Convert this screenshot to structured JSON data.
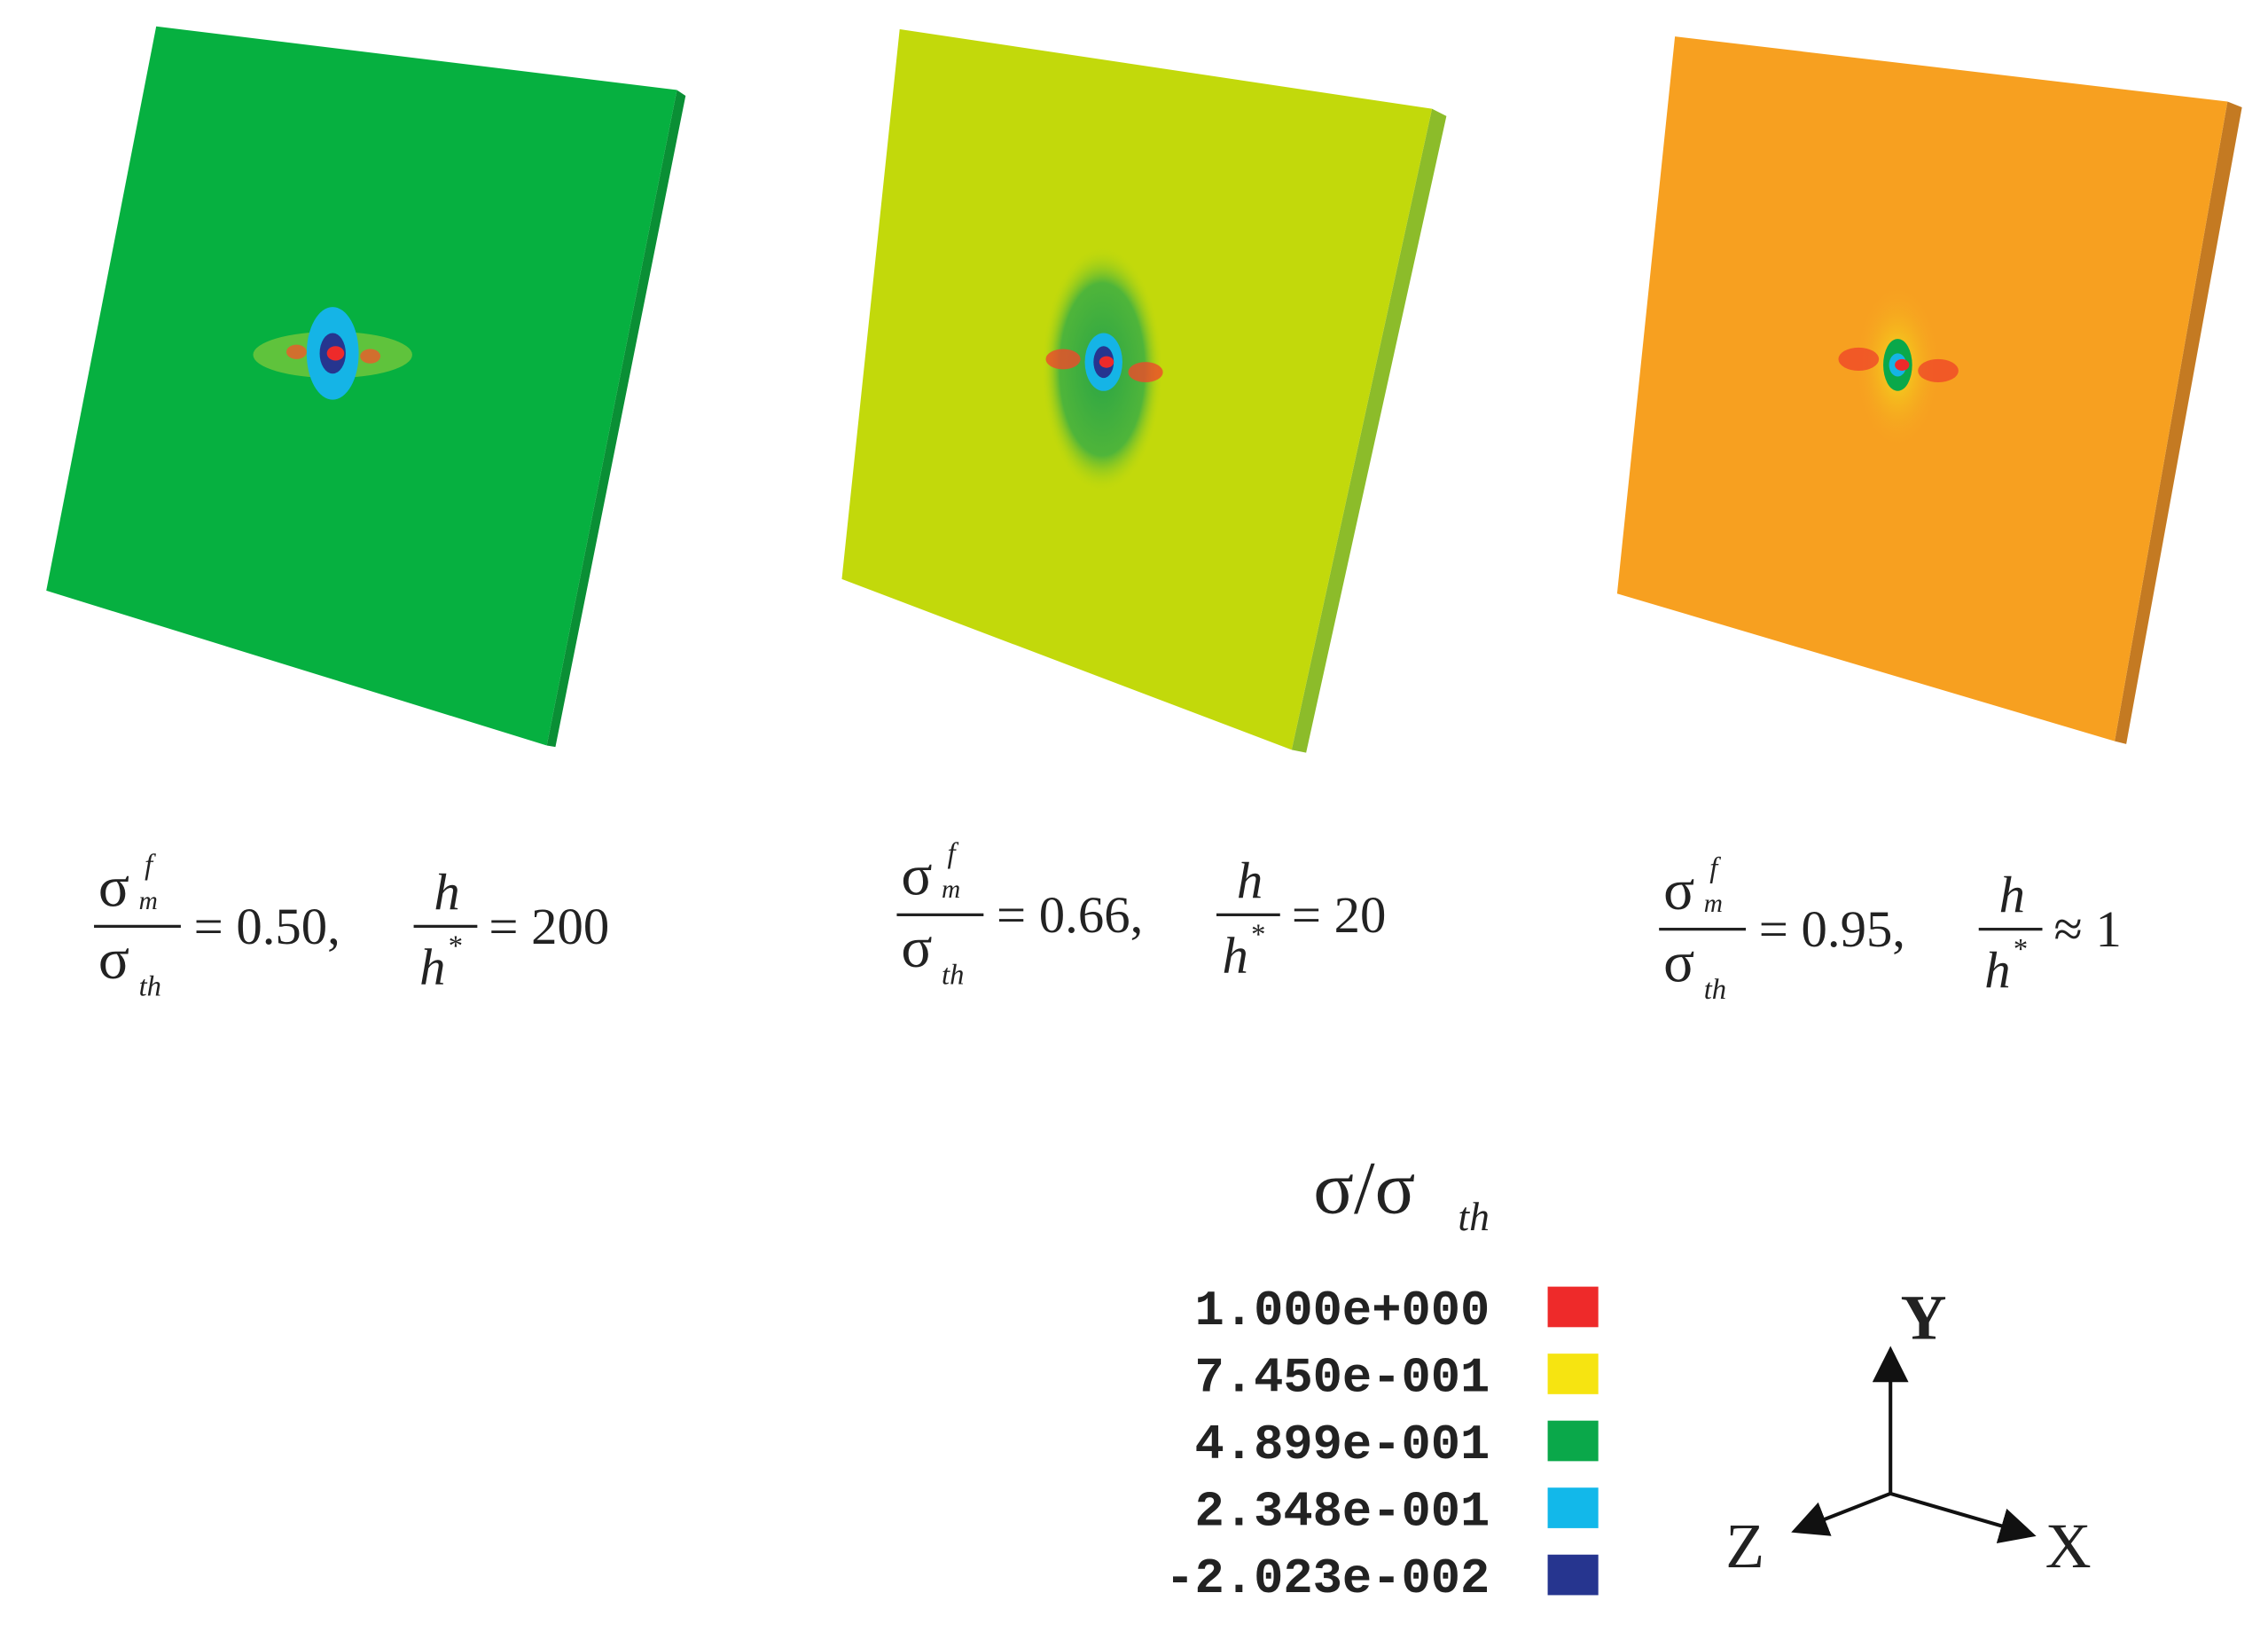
{
  "panels": [
    {
      "stress_num": "σ",
      "stress_sup": "f",
      "stress_sub": "m",
      "stress_den": "σ",
      "stress_den_sub": "th",
      "stress_value": "= 0.50,",
      "h_num": "h",
      "h_den": "h",
      "h_den_sup": "*",
      "h_value": "= 200"
    },
    {
      "stress_num": "σ",
      "stress_sup": "f",
      "stress_sub": "m",
      "stress_den": "σ",
      "stress_den_sub": "th",
      "stress_value": "= 0.66,",
      "h_num": "h",
      "h_den": "h",
      "h_den_sup": "*",
      "h_value": "= 20"
    },
    {
      "stress_num": "σ",
      "stress_sup": "f",
      "stress_sub": "m",
      "stress_den": "σ",
      "stress_den_sub": "th",
      "stress_value": "= 0.95,",
      "h_num": "h",
      "h_den": "h",
      "h_den_sup": "*",
      "h_value": "≈ 1"
    }
  ],
  "legend": {
    "title": "σ/σ",
    "title_sub": "th",
    "entries": [
      {
        "label": "1.000e+000",
        "color": "#ee2a2a"
      },
      {
        "label": "7.450e-001",
        "color": "#f6e411"
      },
      {
        "label": "4.899e-001",
        "color": "#0aa84a"
      },
      {
        "label": "2.348e-001",
        "color": "#12b8ea"
      },
      {
        "label": "-2.023e-002",
        "color": "#26358f"
      }
    ]
  },
  "axes": {
    "y": "Y",
    "x": "X",
    "z": "Z"
  }
}
